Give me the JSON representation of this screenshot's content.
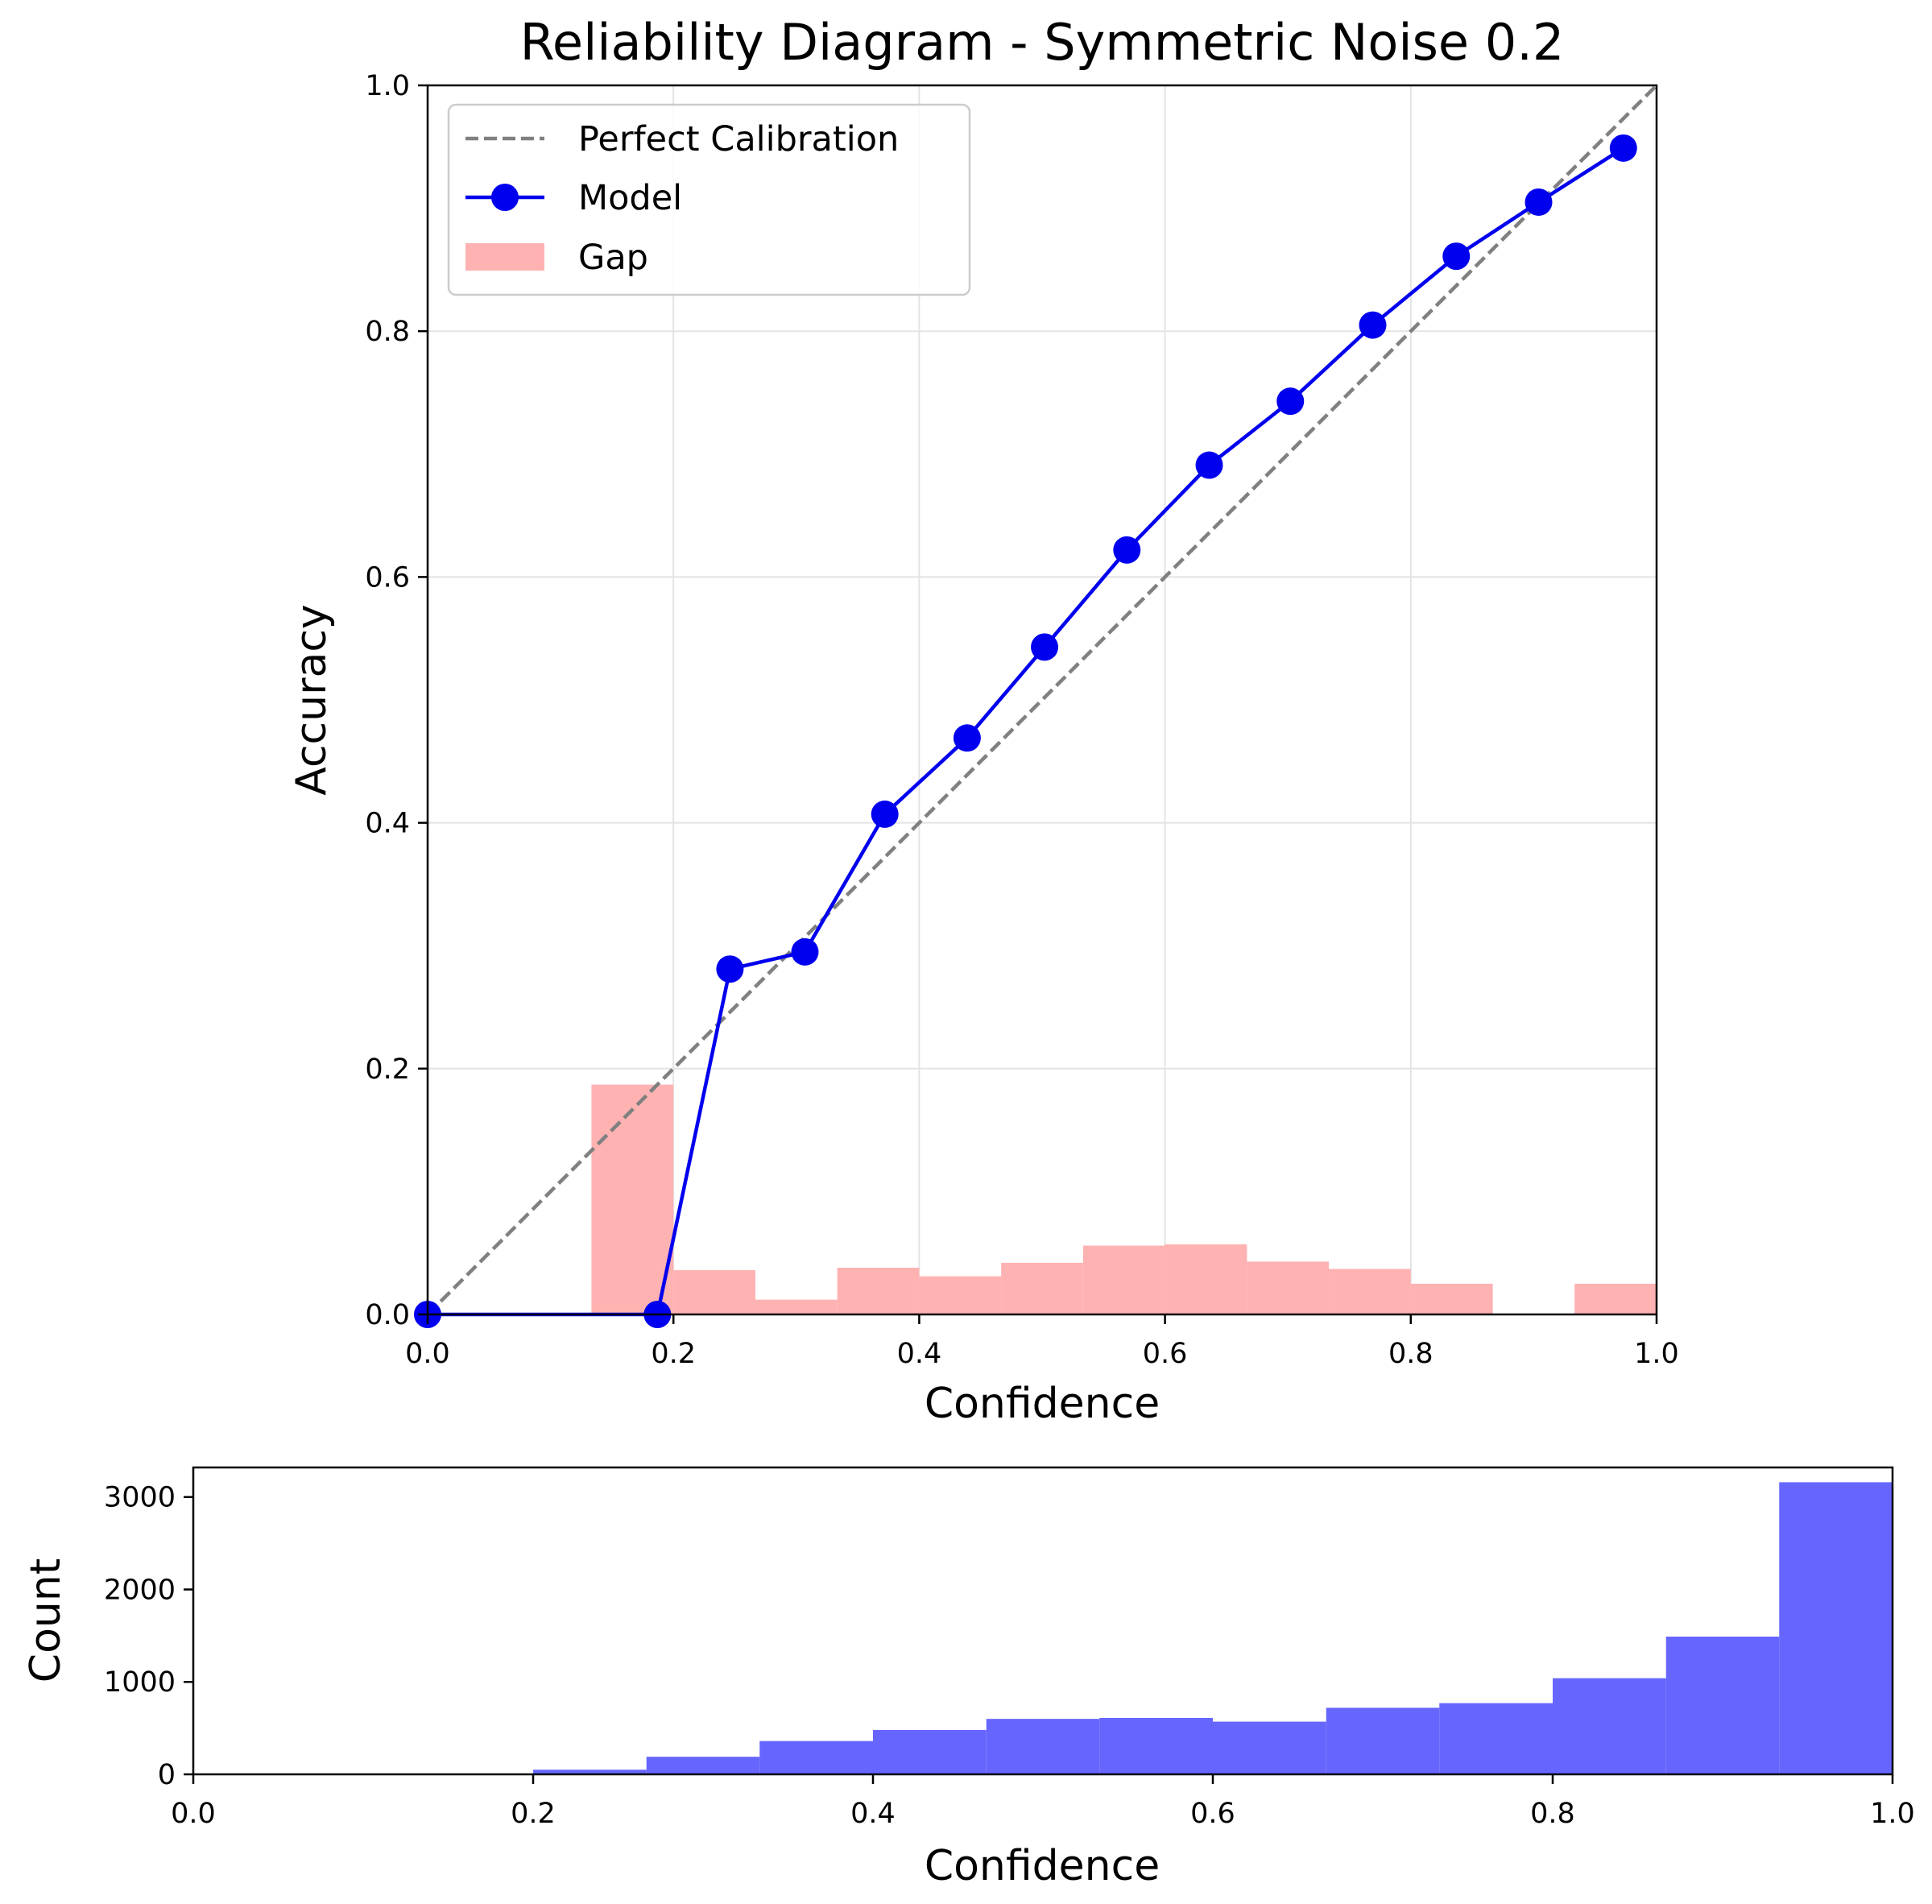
{
  "chart_data": [
    {
      "type": "line",
      "title": "Reliability Diagram - Symmetric Noise 0.2",
      "xlabel": "Confidence",
      "ylabel": "Accuracy",
      "xlim": [
        0,
        1
      ],
      "ylim": [
        0,
        1
      ],
      "grid": true,
      "x_ticks": [
        "0.0",
        "0.2",
        "0.4",
        "0.6",
        "0.8",
        "1.0"
      ],
      "y_ticks": [
        "0.0",
        "0.2",
        "0.4",
        "0.6",
        "0.8",
        "1.0"
      ],
      "legend": {
        "placement": "upper-left",
        "entries": [
          "Perfect Calibration",
          "Model",
          "Gap"
        ]
      },
      "series": [
        {
          "name": "Perfect Calibration",
          "style": "dashed",
          "color": "#808080",
          "x": [
            0,
            1
          ],
          "y": [
            0,
            1
          ]
        },
        {
          "name": "Model",
          "style": "line-marker",
          "color": "#0000ee",
          "x": [
            0.0,
            0.187,
            0.246,
            0.307,
            0.372,
            0.439,
            0.502,
            0.569,
            0.636,
            0.702,
            0.769,
            0.837,
            0.904,
            0.973
          ],
          "y": [
            0.0,
            0.0,
            0.281,
            0.295,
            0.407,
            0.469,
            0.543,
            0.622,
            0.691,
            0.743,
            0.805,
            0.861,
            0.905,
            0.949
          ]
        },
        {
          "name": "Gap",
          "style": "bar",
          "color": "#ffb2b2",
          "bin_edges": [
            0.0,
            0.0667,
            0.1333,
            0.2,
            0.2667,
            0.3333,
            0.4,
            0.4667,
            0.5333,
            0.6,
            0.6667,
            0.7333,
            0.8,
            0.8667,
            0.9333,
            1.0
          ],
          "values": [
            0,
            0,
            0.187,
            0.036,
            0.012,
            0.038,
            0.031,
            0.042,
            0.056,
            0.057,
            0.043,
            0.037,
            0.025,
            0,
            0.025
          ]
        }
      ]
    },
    {
      "type": "bar",
      "title": "",
      "xlabel": "Confidence",
      "ylabel": "Count",
      "xlim": [
        0,
        1
      ],
      "ylim": [
        0,
        3320
      ],
      "grid": false,
      "x_ticks": [
        "0.0",
        "0.2",
        "0.4",
        "0.6",
        "0.8",
        "1.0"
      ],
      "y_ticks": [
        "0",
        "1000",
        "2000",
        "3000"
      ],
      "y_tick_values": [
        0,
        1000,
        2000,
        3000
      ],
      "color": "#6666ff",
      "bin_edges": [
        0.0,
        0.0667,
        0.1333,
        0.2,
        0.2667,
        0.3333,
        0.4,
        0.4667,
        0.5333,
        0.6,
        0.6667,
        0.7333,
        0.8,
        0.8667,
        0.9333,
        1.0
      ],
      "values": [
        0,
        0,
        0,
        50,
        190,
        360,
        480,
        600,
        610,
        570,
        720,
        770,
        1040,
        1490,
        3160
      ]
    }
  ]
}
